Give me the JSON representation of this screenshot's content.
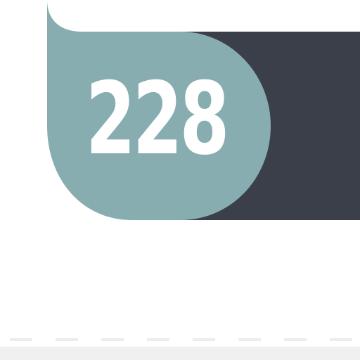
{
  "badge": {
    "number": "228"
  },
  "colors": {
    "teal": "#88adb0",
    "dark": "#3b3f49",
    "text": "#ffffff",
    "dash": "#ededed",
    "bottom_bar": "#f0f0f1",
    "background": "#ffffff"
  }
}
